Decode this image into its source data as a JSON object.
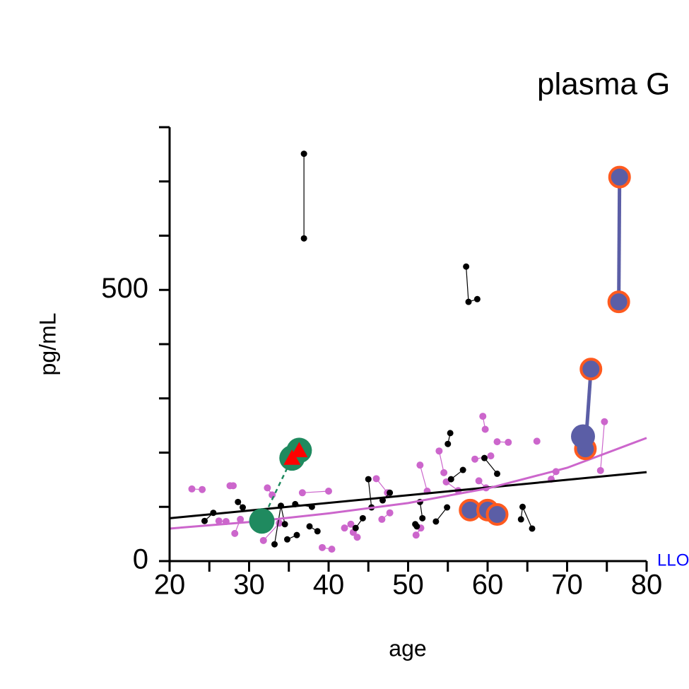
{
  "chart_data": {
    "type": "scatter",
    "title": "plasma G",
    "x_label": "age",
    "y_label": "pg/mL",
    "xlim": [
      20,
      80
    ],
    "ylim": [
      0,
      800
    ],
    "xticks": [
      20,
      30,
      40,
      50,
      60,
      70,
      80
    ],
    "xminor_ticks": [
      25,
      35,
      45,
      55,
      65,
      75
    ],
    "yticks": [
      0,
      500
    ],
    "yminor_ticks": [
      100,
      200,
      300,
      400,
      600,
      700,
      800
    ],
    "reference_line": {
      "value": 0,
      "label": "LLO",
      "color": "#0000ff"
    },
    "series": [
      {
        "color": "#cc66cc",
        "marker": "circle",
        "marker_size": 5,
        "line_width": 1.2,
        "x": [
          22.8,
          24.1
        ],
        "values": [
          133,
          132
        ]
      },
      {
        "color": "#cc66cc",
        "marker": "circle",
        "marker_size": 5,
        "line_width": 1.2,
        "x": [
          26.2,
          27.1
        ],
        "values": [
          74,
          73
        ]
      },
      {
        "color": "#cc66cc",
        "marker": "circle",
        "marker_size": 5,
        "line_width": 1.2,
        "x": [
          27.6,
          28
        ],
        "values": [
          139,
          139
        ]
      },
      {
        "color": "#cc66cc",
        "marker": "circle",
        "marker_size": 5,
        "line_width": 1.2,
        "x": [
          28.2,
          28.9
        ],
        "values": [
          51,
          77
        ]
      },
      {
        "color": "#cc66cc",
        "marker": "circle",
        "marker_size": 5,
        "line_width": 1.2,
        "x": [
          32.3,
          32.9
        ],
        "values": [
          135,
          122
        ]
      },
      {
        "color": "#cc66cc",
        "marker": "circle",
        "marker_size": 5,
        "line_width": 1.2,
        "x": [
          31.8,
          33.8
        ],
        "values": [
          38,
          70
        ]
      },
      {
        "color": "#cc66cc",
        "marker": "circle",
        "marker_size": 5,
        "line_width": 1.2,
        "x": [
          36.7,
          40
        ],
        "values": [
          126,
          129
        ]
      },
      {
        "color": "#cc66cc",
        "marker": "circle",
        "marker_size": 5,
        "line_width": 1.2,
        "x": [
          39.2,
          40.4
        ],
        "values": [
          25,
          22
        ]
      },
      {
        "color": "#cc66cc",
        "marker": "circle",
        "marker_size": 5,
        "line_width": 1.2,
        "x": [
          42,
          42.8
        ],
        "values": [
          61,
          68
        ]
      },
      {
        "color": "#cc66cc",
        "marker": "circle",
        "marker_size": 5,
        "line_width": 1.2,
        "x": [
          43.6,
          43.1
        ],
        "values": [
          44,
          53
        ]
      },
      {
        "color": "#cc66cc",
        "marker": "circle",
        "marker_size": 5,
        "line_width": 1.2,
        "x": [
          46,
          47.4
        ],
        "values": [
          152,
          126
        ]
      },
      {
        "color": "#cc66cc",
        "marker": "circle",
        "marker_size": 5,
        "line_width": 1.2,
        "x": [
          46.7,
          47.7
        ],
        "values": [
          77,
          89
        ]
      },
      {
        "color": "#cc66cc",
        "marker": "circle",
        "marker_size": 5,
        "line_width": 1.2,
        "x": [
          51.5,
          52.4
        ],
        "values": [
          177,
          129
        ]
      },
      {
        "color": "#cc66cc",
        "marker": "circle",
        "marker_size": 5,
        "line_width": 1.2,
        "x": [
          51,
          51.6
        ],
        "values": [
          48,
          61
        ]
      },
      {
        "color": "#cc66cc",
        "marker": "circle",
        "marker_size": 5,
        "line_width": 1.2,
        "x": [
          53.9,
          54.5
        ],
        "values": [
          203,
          163
        ]
      },
      {
        "color": "#cc66cc",
        "marker": "circle",
        "marker_size": 5,
        "line_width": 1.2,
        "x": [
          54.8,
          56.3
        ],
        "values": [
          146,
          130
        ]
      },
      {
        "color": "#cc66cc",
        "marker": "circle",
        "marker_size": 5,
        "line_width": 1.2,
        "x": [
          59.4,
          59.7
        ],
        "values": [
          267,
          243
        ]
      },
      {
        "color": "#cc66cc",
        "marker": "circle",
        "marker_size": 5,
        "line_width": 1.2,
        "x": [
          61.2,
          62.6
        ],
        "values": [
          220,
          219
        ]
      },
      {
        "color": "#cc66cc",
        "marker": "circle",
        "marker_size": 5,
        "line_width": 1.2,
        "x": [
          66.2
        ],
        "values": [
          221
        ]
      },
      {
        "color": "#cc66cc",
        "marker": "circle",
        "marker_size": 5,
        "line_width": 1.2,
        "x": [
          68,
          68.6
        ],
        "values": [
          151,
          165
        ]
      },
      {
        "color": "#cc66cc",
        "marker": "circle",
        "marker_size": 5,
        "line_width": 1.2,
        "x": [
          74.2,
          74.7
        ],
        "values": [
          167,
          257
        ]
      },
      {
        "color": "#cc66cc",
        "marker": "circle",
        "marker_size": 5,
        "line_width": 1.2,
        "x": [
          58.4,
          60.4
        ],
        "values": [
          188,
          194
        ]
      },
      {
        "color": "#cc66cc",
        "marker": "circle",
        "marker_size": 5,
        "line_width": 1.2,
        "x": [
          58.9,
          59.8
        ],
        "values": [
          148,
          135
        ]
      },
      {
        "color": "#000000",
        "marker": "circle",
        "marker_size": 4.5,
        "line_width": 1.2,
        "x": [
          24.4,
          25.5
        ],
        "values": [
          74,
          89
        ]
      },
      {
        "color": "#000000",
        "marker": "circle",
        "marker_size": 4.5,
        "line_width": 1.2,
        "x": [
          28.6,
          29.2
        ],
        "values": [
          109,
          99
        ]
      },
      {
        "color": "#000000",
        "marker": "circle",
        "marker_size": 4.5,
        "line_width": 1.2,
        "x": [
          33.2,
          34,
          34.5
        ],
        "values": [
          31,
          102,
          68
        ]
      },
      {
        "color": "#000000",
        "marker": "circle",
        "marker_size": 4.5,
        "line_width": 1.2,
        "x": [
          34.8,
          36
        ],
        "values": [
          40,
          48
        ]
      },
      {
        "color": "#000000",
        "marker": "circle",
        "marker_size": 4.5,
        "line_width": 1.2,
        "x": [
          35.8,
          37.9
        ],
        "values": [
          105,
          100
        ]
      },
      {
        "color": "#000000",
        "marker": "circle",
        "marker_size": 4.5,
        "line_width": 1.2,
        "x": [
          37.6,
          38.6
        ],
        "values": [
          64,
          55
        ]
      },
      {
        "color": "#000000",
        "marker": "circle",
        "marker_size": 4.5,
        "line_width": 1.2,
        "x": [
          36.9,
          36.9
        ],
        "values": [
          751,
          595
        ]
      },
      {
        "color": "#000000",
        "marker": "circle",
        "marker_size": 4.5,
        "line_width": 1.2,
        "x": [
          43.4,
          44.3
        ],
        "values": [
          61,
          79
        ]
      },
      {
        "color": "#000000",
        "marker": "circle",
        "marker_size": 4.5,
        "line_width": 1.2,
        "x": [
          45,
          45.4
        ],
        "values": [
          151,
          99
        ]
      },
      {
        "color": "#000000",
        "marker": "circle",
        "marker_size": 4.5,
        "line_width": 1.2,
        "x": [
          46.8,
          47.7
        ],
        "values": [
          112,
          126
        ]
      },
      {
        "color": "#000000",
        "marker": "circle",
        "marker_size": 4.5,
        "line_width": 1.2,
        "x": [
          50.9,
          51.1
        ],
        "values": [
          68,
          64
        ]
      },
      {
        "color": "#000000",
        "marker": "circle",
        "marker_size": 4.5,
        "line_width": 1.2,
        "x": [
          51.5,
          51.8
        ],
        "values": [
          109,
          79
        ]
      },
      {
        "color": "#000000",
        "marker": "circle",
        "marker_size": 4.5,
        "line_width": 1.2,
        "x": [
          53.5,
          54.9
        ],
        "values": [
          73,
          99
        ]
      },
      {
        "color": "#000000",
        "marker": "circle",
        "marker_size": 4.5,
        "line_width": 1.2,
        "x": [
          55,
          55.3
        ],
        "values": [
          216,
          236
        ]
      },
      {
        "color": "#000000",
        "marker": "circle",
        "marker_size": 4.5,
        "line_width": 1.2,
        "x": [
          55.4,
          56.9
        ],
        "values": [
          151,
          168
        ]
      },
      {
        "color": "#000000",
        "marker": "circle",
        "marker_size": 4.5,
        "line_width": 1.2,
        "x": [
          57.3,
          57.6,
          58.7
        ],
        "values": [
          543,
          478,
          483
        ]
      },
      {
        "color": "#000000",
        "marker": "circle",
        "marker_size": 4.5,
        "line_width": 1.2,
        "x": [
          59.6,
          61.2
        ],
        "values": [
          190,
          161
        ]
      },
      {
        "color": "#000000",
        "marker": "circle",
        "marker_size": 4.5,
        "line_width": 1.2,
        "x": [
          64.2,
          64.4,
          65.6
        ],
        "values": [
          77,
          100,
          60
        ]
      },
      {
        "color": "#000000",
        "marker": "none",
        "line_width": 3,
        "x": [
          20,
          80
        ],
        "values": [
          79,
          164
        ]
      },
      {
        "color": "#cc66cc",
        "marker": "none",
        "line_width": 3,
        "x": [
          20,
          30,
          40,
          50,
          60,
          70,
          80
        ],
        "values": [
          60,
          72,
          88,
          107,
          134,
          172,
          227
        ]
      },
      {
        "color": "#1f8a5f",
        "marker": "circle",
        "marker_size": 18,
        "line_width": 2.5,
        "dashed": true,
        "x": [
          31.6,
          35.4,
          36.3
        ],
        "values": [
          74,
          190,
          204
        ]
      },
      {
        "color": "#ff0000",
        "marker": "triangle",
        "marker_size": 12,
        "line_width": 0,
        "x": [
          35.4,
          36.3
        ],
        "values": [
          190,
          204
        ]
      },
      {
        "color": "#5b5ea6",
        "edge_color": "#ff5a1f",
        "marker": "circle",
        "marker_size": 14,
        "line_width": 5,
        "x": [
          76.6,
          76.5
        ],
        "values": [
          708,
          478
        ]
      },
      {
        "color": "#5b5ea6",
        "edge_color": "#ff5a1f",
        "marker": "circle",
        "marker_size": 14,
        "line_width": 5,
        "x": [
          73,
          72.3
        ],
        "values": [
          354,
          207
        ]
      },
      {
        "color": "#5b5ea6",
        "marker": "circle",
        "marker_size": 17,
        "line_width": 0,
        "x": [
          72
        ],
        "values": [
          230
        ]
      },
      {
        "color": "#5b5ea6",
        "edge_color": "#ff5a1f",
        "marker": "circle",
        "marker_size": 14,
        "line_width": 0,
        "x": [
          57.8,
          60,
          61.2
        ],
        "values": [
          94,
          94,
          86
        ]
      }
    ]
  }
}
